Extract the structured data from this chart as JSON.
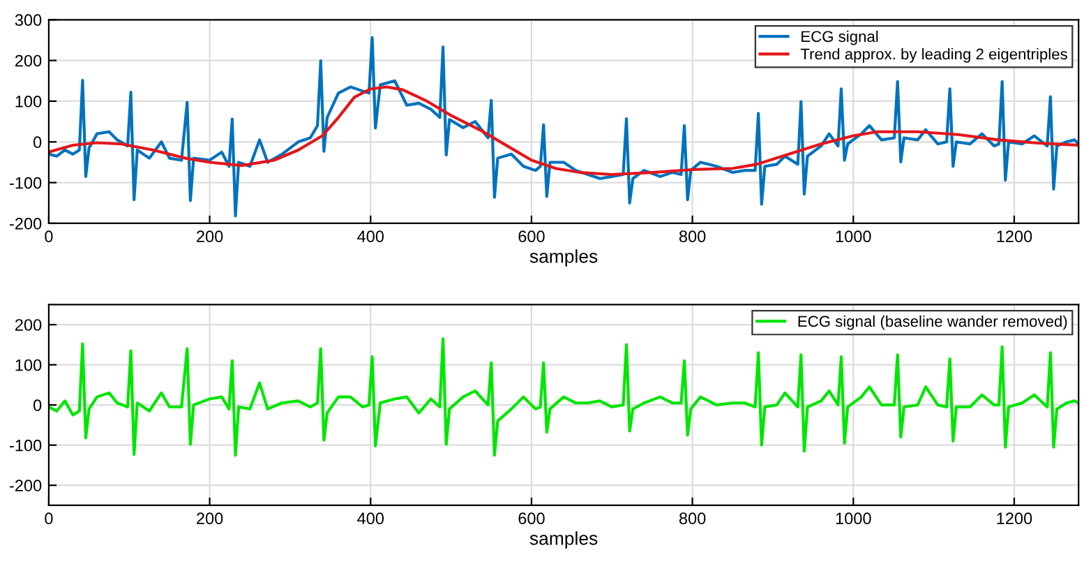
{
  "chart_data": [
    {
      "type": "line",
      "xlabel": "samples",
      "xlim": [
        0,
        1280
      ],
      "xticks": [
        0,
        200,
        400,
        600,
        800,
        1000,
        1200
      ],
      "ylim": [
        -200,
        300
      ],
      "yticks": [
        -200,
        -100,
        0,
        100,
        200,
        300
      ],
      "grid": true,
      "legend": "top right",
      "line_style": "solid",
      "series": [
        {
          "name": "ECG signal",
          "color": "#0072bd",
          "x": [
            0,
            10,
            20,
            30,
            38,
            42,
            46,
            50,
            60,
            75,
            85,
            98,
            102,
            106,
            110,
            125,
            140,
            150,
            165,
            172,
            176,
            180,
            200,
            215,
            224,
            228,
            232,
            236,
            250,
            262,
            272,
            290,
            310,
            325,
            334,
            338,
            342,
            346,
            360,
            375,
            390,
            398,
            402,
            406,
            412,
            430,
            445,
            460,
            475,
            486,
            490,
            494,
            498,
            515,
            530,
            546,
            550,
            554,
            558,
            575,
            590,
            605,
            611,
            615,
            619,
            623,
            640,
            655,
            670,
            685,
            700,
            714,
            718,
            722,
            726,
            740,
            760,
            775,
            786,
            790,
            794,
            798,
            810,
            830,
            850,
            865,
            878,
            882,
            886,
            890,
            905,
            915,
            931,
            935,
            939,
            943,
            960,
            970,
            981,
            985,
            989,
            993,
            1010,
            1020,
            1035,
            1051,
            1055,
            1059,
            1063,
            1080,
            1090,
            1105,
            1116,
            1120,
            1124,
            1128,
            1145,
            1160,
            1175,
            1181,
            1185,
            1189,
            1193,
            1210,
            1225,
            1241,
            1245,
            1249,
            1253,
            1265,
            1275,
            1280
          ],
          "values": [
            -30,
            -35,
            -20,
            -30,
            -20,
            151,
            -85,
            -15,
            20,
            25,
            5,
            -10,
            122,
            -142,
            -20,
            -40,
            0,
            -40,
            -45,
            97,
            -144,
            -40,
            -45,
            -25,
            -60,
            56,
            -182,
            -50,
            -60,
            5,
            -50,
            -30,
            0,
            10,
            40,
            199,
            -23,
            60,
            120,
            135,
            125,
            120,
            256,
            34,
            140,
            150,
            90,
            95,
            80,
            60,
            233,
            -32,
            55,
            35,
            50,
            10,
            102,
            -136,
            -40,
            -30,
            -60,
            -70,
            -60,
            42,
            -134,
            -50,
            -50,
            -70,
            -80,
            -90,
            -85,
            -80,
            57,
            -150,
            -90,
            -70,
            -85,
            -75,
            -80,
            40,
            -142,
            -70,
            -50,
            -60,
            -75,
            -70,
            -70,
            70,
            -153,
            -60,
            -55,
            -35,
            -55,
            99,
            -128,
            -35,
            -10,
            20,
            -10,
            130,
            -45,
            -5,
            20,
            40,
            5,
            10,
            148,
            -49,
            10,
            5,
            30,
            -5,
            0,
            130,
            -60,
            0,
            -5,
            20,
            -10,
            -5,
            148,
            -94,
            0,
            -5,
            15,
            -10,
            111,
            -116,
            -10,
            0,
            5,
            -5
          ]
        },
        {
          "name": "Trend approx. by leading 2 eigentriples",
          "color": "#e3171b",
          "x": [
            0,
            30,
            60,
            90,
            130,
            170,
            200,
            240,
            280,
            310,
            340,
            360,
            380,
            400,
            420,
            440,
            470,
            500,
            540,
            570,
            600,
            630,
            660,
            700,
            750,
            800,
            850,
            880,
            920,
            960,
            1000,
            1030,
            1080,
            1130,
            1180,
            1230,
            1280
          ],
          "values": [
            -25,
            -8,
            -2,
            -5,
            -20,
            -40,
            -50,
            -58,
            -45,
            -20,
            15,
            60,
            110,
            130,
            135,
            128,
            100,
            65,
            25,
            -10,
            -45,
            -65,
            -75,
            -80,
            -75,
            -68,
            -65,
            -55,
            -30,
            -5,
            15,
            25,
            25,
            18,
            5,
            -3,
            -8
          ]
        }
      ]
    },
    {
      "type": "line",
      "xlabel": "samples",
      "xlim": [
        0,
        1280
      ],
      "xticks": [
        0,
        200,
        400,
        600,
        800,
        1000,
        1200
      ],
      "ylim": [
        -250,
        250
      ],
      "yticks": [
        -200,
        -100,
        0,
        100,
        200
      ],
      "grid": true,
      "legend": "top right",
      "line_style": "solid",
      "series": [
        {
          "name": "ECG signal (baseline wander removed)",
          "color": "#00e600",
          "x": [
            0,
            10,
            20,
            30,
            38,
            42,
            46,
            50,
            60,
            75,
            85,
            98,
            102,
            106,
            110,
            125,
            140,
            150,
            165,
            172,
            176,
            180,
            200,
            215,
            224,
            228,
            232,
            236,
            250,
            262,
            272,
            290,
            310,
            325,
            334,
            338,
            342,
            346,
            360,
            375,
            390,
            398,
            402,
            406,
            412,
            430,
            445,
            460,
            475,
            486,
            490,
            494,
            498,
            515,
            530,
            546,
            550,
            554,
            558,
            575,
            590,
            605,
            611,
            615,
            619,
            623,
            640,
            655,
            670,
            685,
            700,
            714,
            718,
            722,
            726,
            740,
            760,
            775,
            786,
            790,
            794,
            798,
            810,
            830,
            850,
            865,
            878,
            882,
            886,
            890,
            905,
            915,
            931,
            935,
            939,
            943,
            960,
            970,
            981,
            985,
            989,
            993,
            1010,
            1020,
            1035,
            1051,
            1055,
            1059,
            1063,
            1080,
            1090,
            1105,
            1116,
            1120,
            1124,
            1128,
            1145,
            1160,
            1175,
            1181,
            1185,
            1189,
            1193,
            1210,
            1225,
            1241,
            1245,
            1249,
            1253,
            1265,
            1275,
            1280
          ],
          "values": [
            -5,
            -15,
            10,
            -25,
            -15,
            152,
            -82,
            -10,
            20,
            30,
            5,
            -5,
            135,
            -123,
            5,
            -15,
            30,
            -5,
            -5,
            140,
            -98,
            0,
            15,
            20,
            -10,
            110,
            -125,
            -5,
            -10,
            55,
            -10,
            5,
            10,
            -5,
            5,
            140,
            -88,
            -20,
            20,
            20,
            -5,
            0,
            120,
            -102,
            5,
            15,
            20,
            -20,
            15,
            -5,
            165,
            -98,
            -10,
            20,
            35,
            0,
            105,
            -125,
            -40,
            -10,
            20,
            -10,
            -5,
            105,
            -68,
            -10,
            20,
            5,
            5,
            10,
            -5,
            0,
            150,
            -65,
            -10,
            5,
            20,
            5,
            5,
            110,
            -75,
            -10,
            20,
            0,
            5,
            5,
            -5,
            130,
            -100,
            -5,
            0,
            30,
            -5,
            125,
            -115,
            -5,
            10,
            35,
            0,
            120,
            -95,
            -5,
            20,
            45,
            0,
            0,
            125,
            -80,
            -5,
            0,
            45,
            0,
            -5,
            115,
            -90,
            -5,
            -5,
            25,
            0,
            0,
            145,
            -105,
            -5,
            5,
            25,
            -5,
            130,
            -105,
            -10,
            5,
            10,
            5
          ]
        }
      ]
    }
  ]
}
